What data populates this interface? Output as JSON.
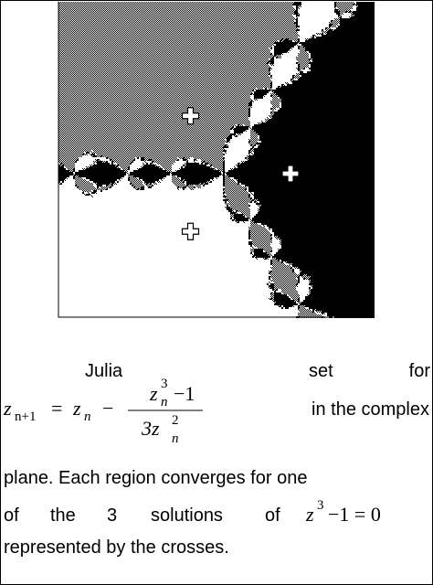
{
  "caption": {
    "intro": [
      "Julia",
      "set",
      "for"
    ],
    "formula": {
      "lhs_var": "z",
      "lhs_sub": "n+1",
      "eq": "=",
      "z": "z",
      "z_sub": "n",
      "minus": "−",
      "num_var": "z",
      "num_sub": "n",
      "num_sup": "3",
      "num_rest": "−1",
      "den": "3z",
      "den_sub": "n",
      "den_sup": "2"
    },
    "after_formula": "in the complex",
    "line3": "plane. Each region converges for one",
    "line4_words": [
      "of",
      "the",
      "3",
      "solutions",
      "of"
    ],
    "equation": {
      "var": "z",
      "sup": "3",
      "rest": "−1 = 0"
    },
    "line5": "represented by the crosses."
  }
}
